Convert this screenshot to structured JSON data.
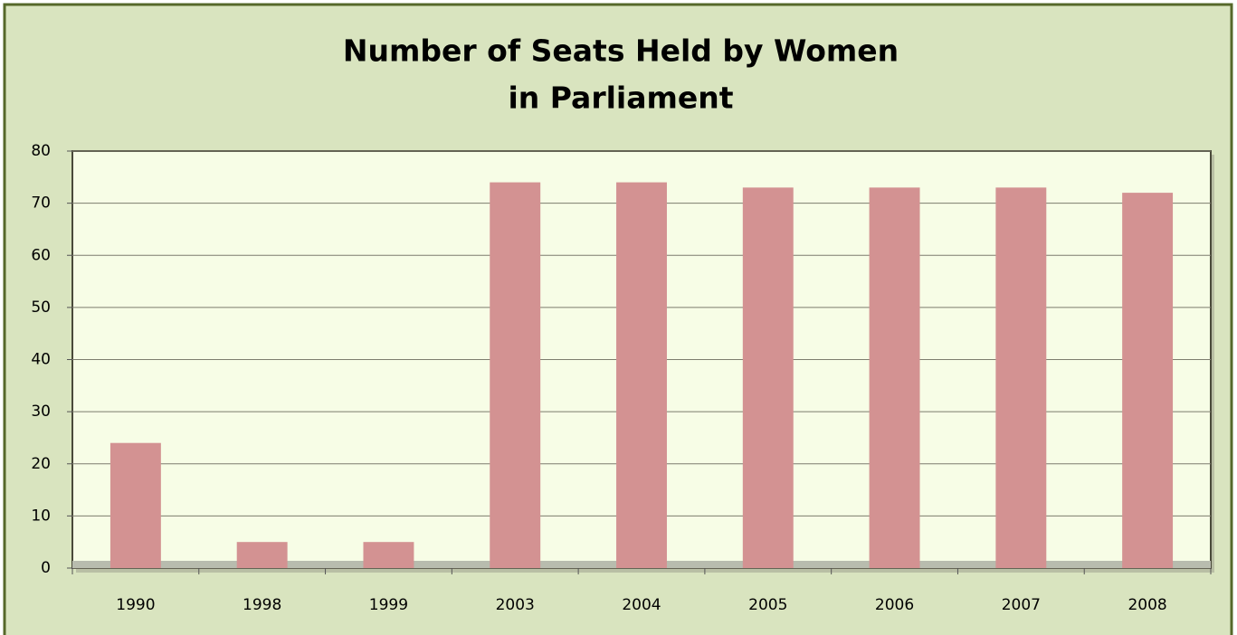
{
  "chart_data": {
    "type": "bar",
    "title": [
      "Number of Seats Held by Women",
      "in Parliament"
    ],
    "categories": [
      "1990",
      "1998",
      "1999",
      "2003",
      "2004",
      "2005",
      "2006",
      "2007",
      "2008"
    ],
    "values": [
      24,
      5,
      5,
      74,
      74,
      73,
      73,
      73,
      72
    ],
    "color": "#d39292",
    "ylim": [
      0,
      80
    ],
    "yticks": [
      0,
      10,
      20,
      30,
      40,
      50,
      60,
      70,
      80
    ],
    "grid": true
  }
}
